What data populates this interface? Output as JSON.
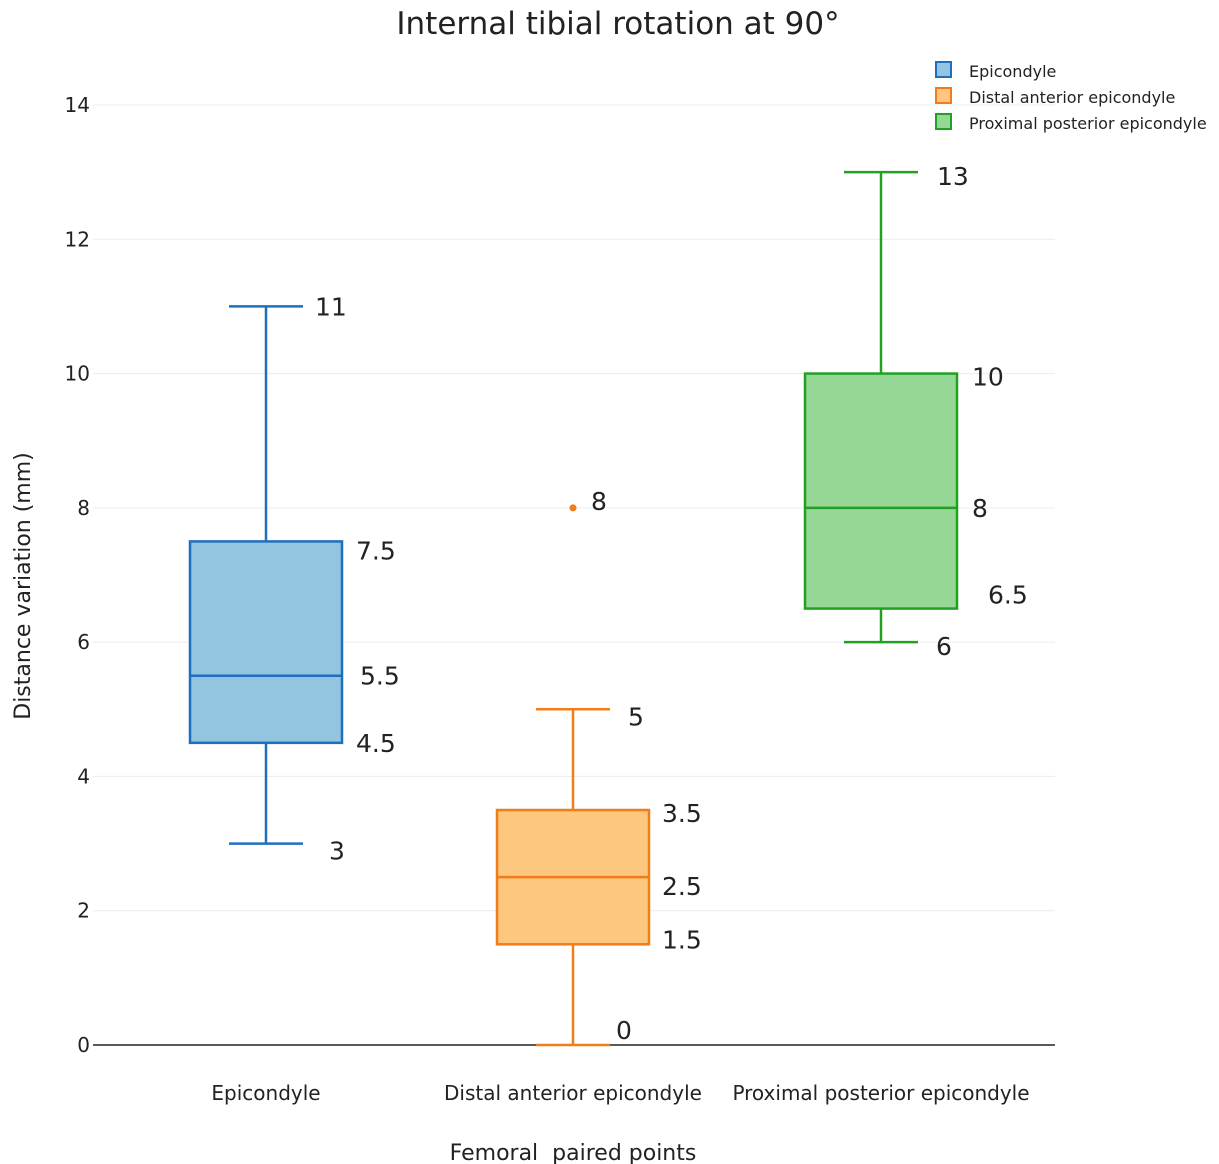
{
  "chart_data": {
    "type": "box",
    "title": "Internal tibial rotation at 90°",
    "xlabel": "Femoral  paired points",
    "ylabel": "Distance variation (mm)",
    "ylim": [
      0,
      14
    ],
    "yticks": [
      "0",
      "2",
      "4",
      "6",
      "8",
      "10",
      "12",
      "14"
    ],
    "grid": true,
    "legend_position": "top-right",
    "categories": [
      "Epicondyle",
      "Distal anterior epicondyle",
      "Proximal posterior epicondyle"
    ],
    "series": [
      {
        "name": "Epicondyle",
        "color": "#1f6fbf",
        "fill": "#93c4e0",
        "min": 3,
        "q1": 4.5,
        "median": 5.5,
        "q3": 7.5,
        "max": 11,
        "outliers": [],
        "labels": {
          "max": "11",
          "q3": "7.5",
          "median": "5.5",
          "q1": "4.5",
          "min": "3"
        }
      },
      {
        "name": "Distal anterior epicondyle",
        "color": "#f07d1a",
        "fill": "#fdc77d",
        "min": 0,
        "q1": 1.5,
        "median": 2.5,
        "q3": 3.5,
        "max": 5,
        "outliers": [
          8
        ],
        "labels": {
          "max": "5",
          "q3": "3.5",
          "median": "2.5",
          "q1": "1.5",
          "min": "0",
          "outlier": "8"
        }
      },
      {
        "name": "Proximal posterior epicondyle",
        "color": "#22a022",
        "fill": "#95d895",
        "min": 6,
        "q1": 6.5,
        "median": 8,
        "q3": 10,
        "max": 13,
        "outliers": [],
        "labels": {
          "max": "13",
          "q3": "10",
          "median": "8",
          "q1": "6.5",
          "min": "6"
        }
      }
    ]
  }
}
